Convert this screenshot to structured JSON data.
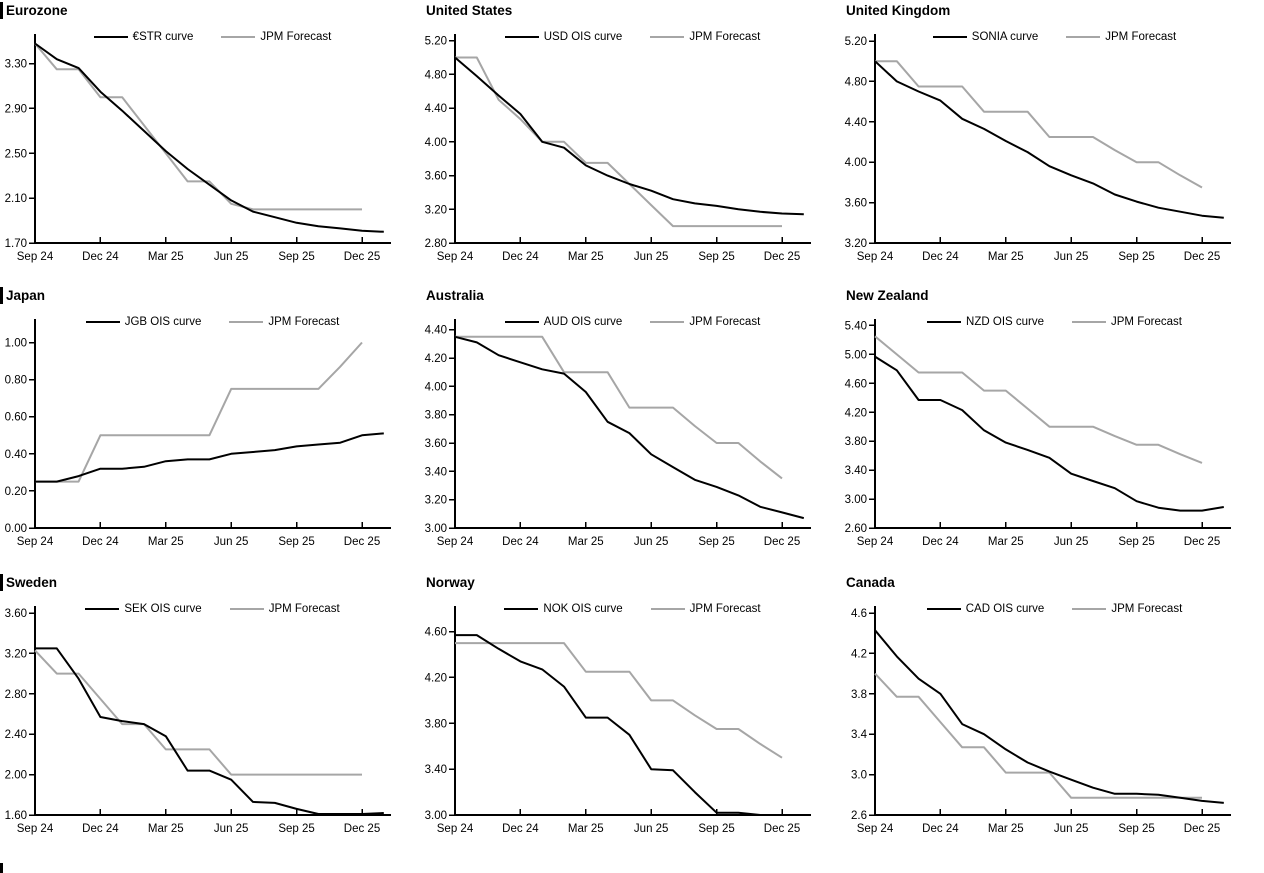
{
  "styles": {
    "background": "#ffffff",
    "curve_color": "#000000",
    "forecast_color": "#a6a6a6",
    "text_color": "#000000"
  },
  "chart_data": {
    "type": "line",
    "layout": "3x3-grid",
    "grid_on": false,
    "legend_position": "top-center-inside",
    "x_monthly": [
      "Sep 24",
      "Oct 24",
      "Nov 24",
      "Dec 24",
      "Jan 25",
      "Feb 25",
      "Mar 25",
      "Apr 25",
      "May 25",
      "Jun 25",
      "Jul 25",
      "Aug 25",
      "Sep 25",
      "Oct 25",
      "Nov 25",
      "Dec 25",
      "Jan 26"
    ],
    "x_axis_tick_labels": [
      "Sep 24",
      "Dec 24",
      "Mar 25",
      "Jun 25",
      "Sep 25",
      "Dec 25"
    ],
    "charts": [
      {
        "title": "Eurozone",
        "section_bar": true,
        "y_ticks": [
          "3.30",
          "2.90",
          "2.50",
          "2.10",
          "1.70"
        ],
        "ylim": [
          1.7,
          3.52
        ],
        "series": [
          {
            "name": "€STR curve",
            "role": "curve",
            "values": [
              3.48,
              3.34,
              3.26,
              3.05,
              2.88,
              2.7,
              2.52,
              2.36,
              2.22,
              2.08,
              1.98,
              1.93,
              1.88,
              1.85,
              1.83,
              1.81,
              1.8
            ]
          },
          {
            "name": "JPM Forecast",
            "role": "forecast",
            "values": [
              3.48,
              3.25,
              3.25,
              3.0,
              3.0,
              2.75,
              2.5,
              2.25,
              2.25,
              2.05,
              2.0,
              2.0,
              2.0,
              2.0,
              2.0,
              2.0
            ]
          }
        ]
      },
      {
        "title": "United States",
        "section_bar": false,
        "y_ticks": [
          "5.20",
          "4.80",
          "4.40",
          "4.00",
          "3.60",
          "3.20",
          "2.80"
        ],
        "ylim": [
          2.8,
          5.22
        ],
        "series": [
          {
            "name": "USD OIS curve",
            "role": "curve",
            "values": [
              5.0,
              4.78,
              4.55,
              4.33,
              4.0,
              3.93,
              3.72,
              3.6,
              3.5,
              3.42,
              3.32,
              3.27,
              3.24,
              3.2,
              3.17,
              3.15,
              3.14
            ]
          },
          {
            "name": "JPM Forecast",
            "role": "forecast",
            "values": [
              5.0,
              5.0,
              4.5,
              4.27,
              4.0,
              4.0,
              3.75,
              3.75,
              3.5,
              3.25,
              3.0,
              3.0,
              3.0,
              3.0,
              3.0,
              3.0
            ]
          }
        ]
      },
      {
        "title": "United Kingdom",
        "section_bar": false,
        "y_ticks": [
          "5.20",
          "4.80",
          "4.40",
          "4.00",
          "3.60",
          "3.20"
        ],
        "ylim": [
          3.2,
          5.22
        ],
        "series": [
          {
            "name": "SONIA curve",
            "role": "curve",
            "values": [
              5.0,
              4.8,
              4.7,
              4.61,
              4.43,
              4.33,
              4.21,
              4.1,
              3.96,
              3.87,
              3.79,
              3.68,
              3.61,
              3.55,
              3.51,
              3.47,
              3.45
            ]
          },
          {
            "name": "JPM Forecast",
            "role": "forecast",
            "values": [
              5.0,
              5.0,
              4.75,
              4.75,
              4.75,
              4.5,
              4.5,
              4.5,
              4.25,
              4.25,
              4.25,
              4.12,
              4.0,
              4.0,
              3.87,
              3.75
            ]
          }
        ]
      },
      {
        "title": "Japan",
        "section_bar": true,
        "y_ticks": [
          "1.00",
          "0.80",
          "0.60",
          "0.40",
          "0.20",
          "0.00"
        ],
        "ylim": [
          0.0,
          1.1
        ],
        "series": [
          {
            "name": "JGB OIS curve",
            "role": "curve",
            "values": [
              0.25,
              0.25,
              0.28,
              0.32,
              0.32,
              0.33,
              0.36,
              0.37,
              0.37,
              0.4,
              0.41,
              0.42,
              0.44,
              0.45,
              0.46,
              0.5,
              0.51
            ]
          },
          {
            "name": "JPM Forecast",
            "role": "forecast",
            "values": [
              0.25,
              0.25,
              0.25,
              0.5,
              0.5,
              0.5,
              0.5,
              0.5,
              0.5,
              0.75,
              0.75,
              0.75,
              0.75,
              0.75,
              0.87,
              1.0
            ]
          }
        ]
      },
      {
        "title": "Australia",
        "section_bar": false,
        "y_ticks": [
          "4.40",
          "4.20",
          "4.00",
          "3.80",
          "3.60",
          "3.40",
          "3.20",
          "3.00"
        ],
        "ylim": [
          3.0,
          4.44
        ],
        "series": [
          {
            "name": "AUD OIS curve",
            "role": "curve",
            "values": [
              4.35,
              4.31,
              4.22,
              4.17,
              4.12,
              4.09,
              3.96,
              3.75,
              3.67,
              3.52,
              3.43,
              3.34,
              3.29,
              3.23,
              3.15,
              3.11,
              3.07
            ]
          },
          {
            "name": "JPM Forecast",
            "role": "forecast",
            "values": [
              4.35,
              4.35,
              4.35,
              4.35,
              4.35,
              4.1,
              4.1,
              4.1,
              3.85,
              3.85,
              3.85,
              3.72,
              3.6,
              3.6,
              3.47,
              3.35
            ]
          }
        ]
      },
      {
        "title": "New Zealand",
        "section_bar": false,
        "y_ticks": [
          "5.40",
          "5.00",
          "4.60",
          "4.20",
          "3.80",
          "3.40",
          "3.00",
          "2.60"
        ],
        "ylim": [
          2.6,
          5.42
        ],
        "series": [
          {
            "name": "NZD OIS curve",
            "role": "curve",
            "values": [
              4.97,
              4.78,
              4.37,
              4.37,
              4.23,
              3.95,
              3.78,
              3.68,
              3.57,
              3.35,
              3.25,
              3.15,
              2.97,
              2.88,
              2.84,
              2.84,
              2.89
            ]
          },
          {
            "name": "JPM Forecast",
            "role": "forecast",
            "values": [
              5.25,
              5.0,
              4.75,
              4.75,
              4.75,
              4.5,
              4.5,
              4.25,
              4.0,
              4.0,
              4.0,
              3.87,
              3.75,
              3.75,
              3.62,
              3.5
            ]
          }
        ]
      },
      {
        "title": "Sweden",
        "section_bar": true,
        "y_ticks": [
          "3.60",
          "3.20",
          "2.80",
          "2.40",
          "2.00",
          "1.60"
        ],
        "ylim": [
          1.6,
          3.62
        ],
        "series": [
          {
            "name": "SEK OIS curve",
            "role": "curve",
            "values": [
              3.25,
              3.25,
              2.95,
              2.57,
              2.53,
              2.5,
              2.38,
              2.04,
              2.04,
              1.95,
              1.73,
              1.72,
              1.66,
              1.61,
              1.61,
              1.61,
              1.62
            ]
          },
          {
            "name": "JPM Forecast",
            "role": "forecast",
            "values": [
              3.23,
              3.0,
              3.0,
              2.75,
              2.5,
              2.5,
              2.25,
              2.25,
              2.25,
              2.0,
              2.0,
              2.0,
              2.0,
              2.0,
              2.0,
              2.0
            ]
          }
        ]
      },
      {
        "title": "Norway",
        "section_bar": false,
        "y_ticks": [
          "4.60",
          "4.20",
          "3.80",
          "3.40",
          "3.00"
        ],
        "ylim": [
          3.0,
          4.78
        ],
        "series": [
          {
            "name": "NOK OIS curve",
            "role": "curve",
            "values": [
              4.57,
              4.57,
              4.45,
              4.34,
              4.27,
              4.12,
              3.85,
              3.85,
              3.7,
              3.4,
              3.39,
              3.2,
              3.02,
              3.02,
              3.0,
              3.0,
              3.0
            ]
          },
          {
            "name": "JPM Forecast",
            "role": "forecast",
            "values": [
              4.5,
              4.5,
              4.5,
              4.5,
              4.5,
              4.5,
              4.25,
              4.25,
              4.25,
              4.0,
              4.0,
              3.87,
              3.75,
              3.75,
              3.62,
              3.5
            ]
          }
        ]
      },
      {
        "title": "Canada",
        "section_bar": false,
        "y_ticks": [
          "4.6",
          "4.2",
          "3.8",
          "3.4",
          "3.0",
          "2.6"
        ],
        "ylim": [
          2.6,
          4.62
        ],
        "series": [
          {
            "name": "CAD OIS curve",
            "role": "curve",
            "values": [
              4.43,
              4.17,
              3.95,
              3.8,
              3.5,
              3.4,
              3.25,
              3.12,
              3.03,
              2.95,
              2.87,
              2.81,
              2.81,
              2.8,
              2.77,
              2.74,
              2.72
            ]
          },
          {
            "name": "JPM Forecast",
            "role": "forecast",
            "values": [
              4.0,
              3.77,
              3.77,
              3.52,
              3.27,
              3.27,
              3.02,
              3.02,
              3.02,
              2.77,
              2.77,
              2.77,
              2.77,
              2.77,
              2.77,
              2.77
            ]
          }
        ]
      }
    ]
  }
}
